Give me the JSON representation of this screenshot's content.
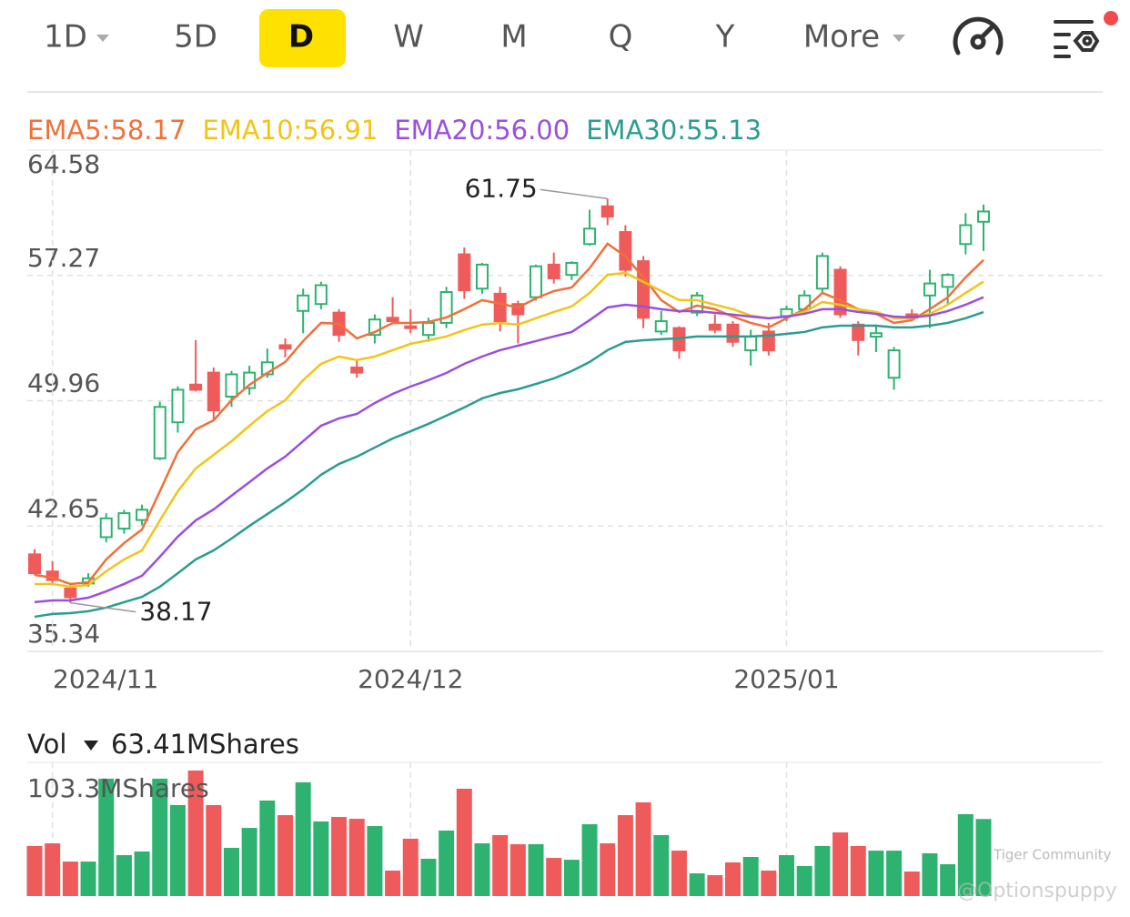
{
  "toolbar": {
    "tabs": [
      "1D",
      "5D",
      "D",
      "W",
      "M",
      "Q",
      "Y",
      "More"
    ],
    "selected": "D"
  },
  "watermark": [
    "Tiger Community",
    "@Optionspuppy"
  ],
  "chart_data": [
    {
      "type": "candlestick",
      "categories": [
        null,
        "2024/11",
        null,
        null,
        null,
        null,
        null,
        null,
        null,
        null,
        null,
        null,
        null,
        null,
        null,
        null,
        null,
        null,
        null,
        null,
        null,
        "2024/12",
        null,
        null,
        null,
        null,
        null,
        null,
        null,
        null,
        null,
        null,
        null,
        null,
        null,
        null,
        null,
        null,
        null,
        null,
        null,
        null,
        "2025/01",
        null,
        null,
        null,
        null,
        null,
        null,
        null,
        null,
        null,
        null,
        null
      ],
      "open": [
        41.0,
        40.0,
        39.0,
        39.3,
        42.0,
        42.5,
        43.0,
        46.6,
        48.7,
        50.9,
        51.6,
        50.2,
        50.7,
        51.5,
        53.2,
        55.2,
        55.6,
        55.1,
        51.9,
        53.8,
        54.8,
        54.3,
        53.8,
        54.5,
        58.5,
        56.5,
        56.2,
        55.6,
        56.0,
        57.9,
        57.3,
        59.1,
        61.3,
        59.8,
        58.1,
        54.0,
        54.2,
        55.1,
        54.4,
        54.4,
        52.9,
        54.0,
        54.9,
        55.3,
        56.5,
        57.6,
        54.4,
        53.7,
        51.3,
        55.0,
        56.1,
        56.6,
        59.1,
        60.4
      ],
      "high": [
        41.3,
        40.6,
        39.2,
        39.9,
        43.4,
        43.6,
        43.9,
        49.9,
        50.8,
        53.5,
        51.9,
        51.7,
        52.0,
        53.0,
        53.6,
        56.5,
        56.9,
        55.3,
        52.4,
        55.0,
        56.0,
        55.3,
        54.8,
        56.6,
        58.9,
        58.0,
        56.6,
        55.8,
        57.9,
        58.6,
        58.1,
        61.1,
        61.75,
        60.2,
        58.4,
        55.2,
        54.3,
        56.3,
        55.0,
        54.6,
        54.1,
        54.5,
        55.5,
        56.4,
        58.6,
        57.8,
        54.6,
        54.4,
        53.1,
        55.3,
        57.6,
        57.4,
        60.9,
        61.4
      ],
      "low": [
        39.8,
        39.2,
        38.17,
        39.1,
        41.7,
        42.2,
        42.7,
        46.5,
        48.1,
        50.5,
        48.9,
        49.6,
        50.3,
        51.3,
        52.5,
        53.9,
        55.3,
        53.4,
        51.3,
        53.3,
        54.5,
        53.9,
        53.4,
        54.2,
        55.9,
        56.2,
        54.0,
        53.3,
        55.8,
        56.8,
        57.0,
        59.0,
        60.2,
        57.2,
        54.2,
        53.8,
        52.4,
        54.9,
        53.9,
        53.1,
        52.0,
        52.6,
        54.6,
        55.1,
        56.3,
        54.8,
        52.6,
        52.8,
        50.6,
        54.6,
        54.2,
        55.6,
        58.5,
        58.7
      ],
      "close": [
        39.9,
        39.5,
        38.5,
        39.6,
        43.1,
        43.4,
        43.6,
        49.6,
        50.6,
        50.6,
        49.4,
        51.5,
        51.6,
        52.2,
        53.0,
        56.1,
        56.7,
        53.8,
        51.6,
        54.7,
        54.6,
        54.2,
        54.5,
        56.3,
        56.4,
        57.9,
        54.6,
        55.0,
        57.8,
        57.1,
        58.0,
        60.0,
        60.7,
        57.6,
        54.8,
        54.6,
        52.9,
        56.1,
        54.1,
        53.4,
        53.7,
        52.9,
        55.3,
        56.1,
        58.4,
        55.0,
        53.5,
        53.9,
        52.9,
        54.8,
        56.8,
        57.3,
        60.2,
        61.0
      ],
      "up_color": "#2db36f",
      "down_color": "#ef5b5b",
      "max_label": "61.75",
      "min_label": "38.17",
      "series": [
        {
          "name": "EMA5:58.17",
          "color": "#f0703a",
          "values": [
            39.8,
            39.64,
            39.27,
            39.37,
            40.7,
            41.66,
            42.45,
            44.68,
            46.96,
            48.29,
            48.82,
            49.99,
            50.89,
            51.58,
            52.22,
            53.44,
            54.5,
            54.45,
            53.6,
            53.97,
            54.5,
            54.5,
            54.55,
            54.82,
            55.3,
            55.83,
            55.62,
            55.4,
            55.93,
            56.36,
            56.57,
            57.69,
            59.12,
            58.38,
            57.16,
            55.83,
            55.14,
            55.51,
            55.3,
            54.87,
            54.5,
            54.24,
            54.77,
            55.3,
            56.25,
            55.83,
            55.3,
            55.03,
            54.5,
            54.66,
            55.3,
            55.99,
            57.16,
            58.17
          ]
        },
        {
          "name": "EMA10:56.91",
          "color": "#f2c418",
          "values": [
            39.27,
            39.27,
            39.11,
            39.21,
            40.01,
            40.7,
            41.23,
            42.98,
            44.68,
            46.01,
            46.8,
            47.6,
            48.5,
            49.35,
            49.99,
            51.16,
            52.11,
            52.54,
            52.33,
            52.54,
            52.91,
            53.28,
            53.49,
            53.71,
            54.08,
            54.4,
            54.5,
            54.4,
            54.77,
            55.14,
            55.46,
            56.25,
            57.31,
            57.42,
            56.89,
            56.36,
            55.83,
            55.83,
            55.56,
            55.3,
            54.93,
            54.77,
            54.87,
            55.14,
            55.72,
            55.56,
            55.3,
            55.14,
            54.77,
            54.77,
            55.03,
            55.56,
            56.25,
            56.91
          ]
        },
        {
          "name": "EMA20:56.00",
          "color": "#9a4fdd",
          "values": [
            38.21,
            38.31,
            38.31,
            38.47,
            38.84,
            39.27,
            39.75,
            40.86,
            42.03,
            42.98,
            43.62,
            44.42,
            45.21,
            46.01,
            46.7,
            47.6,
            48.5,
            48.93,
            49.19,
            49.83,
            50.36,
            50.79,
            51.16,
            51.58,
            52.11,
            52.54,
            52.91,
            53.17,
            53.44,
            53.71,
            53.97,
            54.66,
            55.4,
            55.56,
            55.46,
            55.3,
            55.19,
            55.19,
            55.09,
            54.98,
            54.87,
            54.77,
            54.87,
            55.03,
            55.3,
            55.3,
            55.14,
            55.03,
            54.87,
            54.82,
            54.93,
            55.19,
            55.56,
            56.0
          ]
        },
        {
          "name": "EMA30:55.13",
          "color": "#2a9d8f",
          "values": [
            37.36,
            37.52,
            37.57,
            37.68,
            37.89,
            38.21,
            38.52,
            39.11,
            39.9,
            40.7,
            41.23,
            41.92,
            42.66,
            43.35,
            44.04,
            44.79,
            45.64,
            46.27,
            46.7,
            47.23,
            47.76,
            48.18,
            48.61,
            49.09,
            49.57,
            50.1,
            50.41,
            50.63,
            50.94,
            51.26,
            51.69,
            52.22,
            52.91,
            53.39,
            53.49,
            53.55,
            53.6,
            53.71,
            53.71,
            53.71,
            53.71,
            53.76,
            53.86,
            53.97,
            54.24,
            54.34,
            54.34,
            54.34,
            54.24,
            54.24,
            54.34,
            54.5,
            54.77,
            55.13
          ]
        }
      ],
      "ylim": [
        35.34,
        64.58
      ],
      "yticks": [
        64.58,
        57.27,
        49.96,
        42.65,
        35.34
      ],
      "grid": true
    },
    {
      "type": "bar",
      "title": "Vol",
      "last_value_label": "63.41MShares",
      "values": [
        41.2,
        43.4,
        28.4,
        28.4,
        96.6,
        33.7,
        36.7,
        96.6,
        74.9,
        103.3,
        74.9,
        39.7,
        56.1,
        78.6,
        66.6,
        93.6,
        61.4,
        65.1,
        63.6,
        57.6,
        21.0,
        47.2,
        30.7,
        53.9,
        88.3,
        43.4,
        50.2,
        42.7,
        42.7,
        31.4,
        29.9,
        59.1,
        43.4,
        66.6,
        77.1,
        50.2,
        37.4,
        18.7,
        17.2,
        27.7,
        32.2,
        21.0,
        33.7,
        24.7,
        41.2,
        52.4,
        41.2,
        37.4,
        37.4,
        20.2,
        35.2,
        26.2,
        67.4,
        63.41
      ],
      "ylim": [
        0,
        103.3
      ],
      "yticks": [
        {
          "value": 103.3,
          "label": "103.3MShares"
        }
      ]
    }
  ]
}
